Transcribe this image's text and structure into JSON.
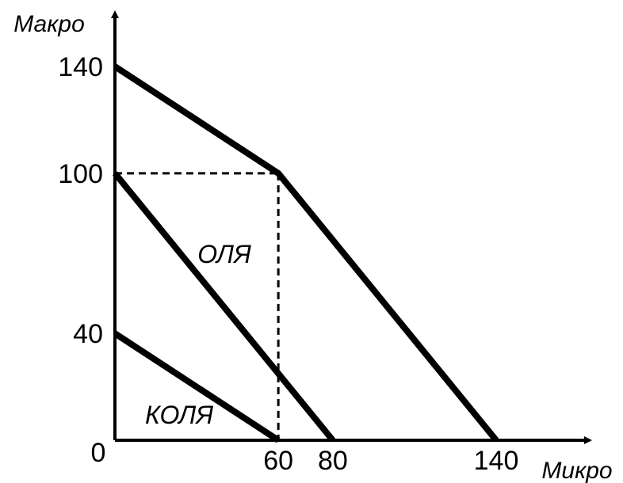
{
  "chart_data": {
    "type": "line",
    "title": "",
    "xlabel": "Микро",
    "ylabel": "Макро",
    "xlim": [
      0,
      185
    ],
    "ylim": [
      0,
      155
    ],
    "x_ticks": [
      {
        "value": 0,
        "label": "0"
      },
      {
        "value": 60,
        "label": "60"
      },
      {
        "value": 80,
        "label": "80"
      },
      {
        "value": 140,
        "label": "140"
      }
    ],
    "y_ticks": [
      {
        "value": 140,
        "label": "140"
      },
      {
        "value": 100,
        "label": "100"
      },
      {
        "value": 40,
        "label": "40"
      }
    ],
    "series": [
      {
        "name": "КОЛЯ",
        "points": [
          [
            0,
            40
          ],
          [
            60,
            0
          ]
        ]
      },
      {
        "name": "ОЛЯ",
        "points": [
          [
            0,
            100
          ],
          [
            80,
            0
          ]
        ]
      },
      {
        "name": "",
        "points": [
          [
            0,
            140
          ],
          [
            60,
            100
          ],
          [
            140,
            0
          ]
        ]
      }
    ],
    "guides": [
      {
        "points": [
          [
            0,
            100
          ],
          [
            60,
            100
          ]
        ]
      },
      {
        "points": [
          [
            60,
            100
          ],
          [
            60,
            0
          ]
        ]
      }
    ],
    "grid": false,
    "legend": "none"
  }
}
